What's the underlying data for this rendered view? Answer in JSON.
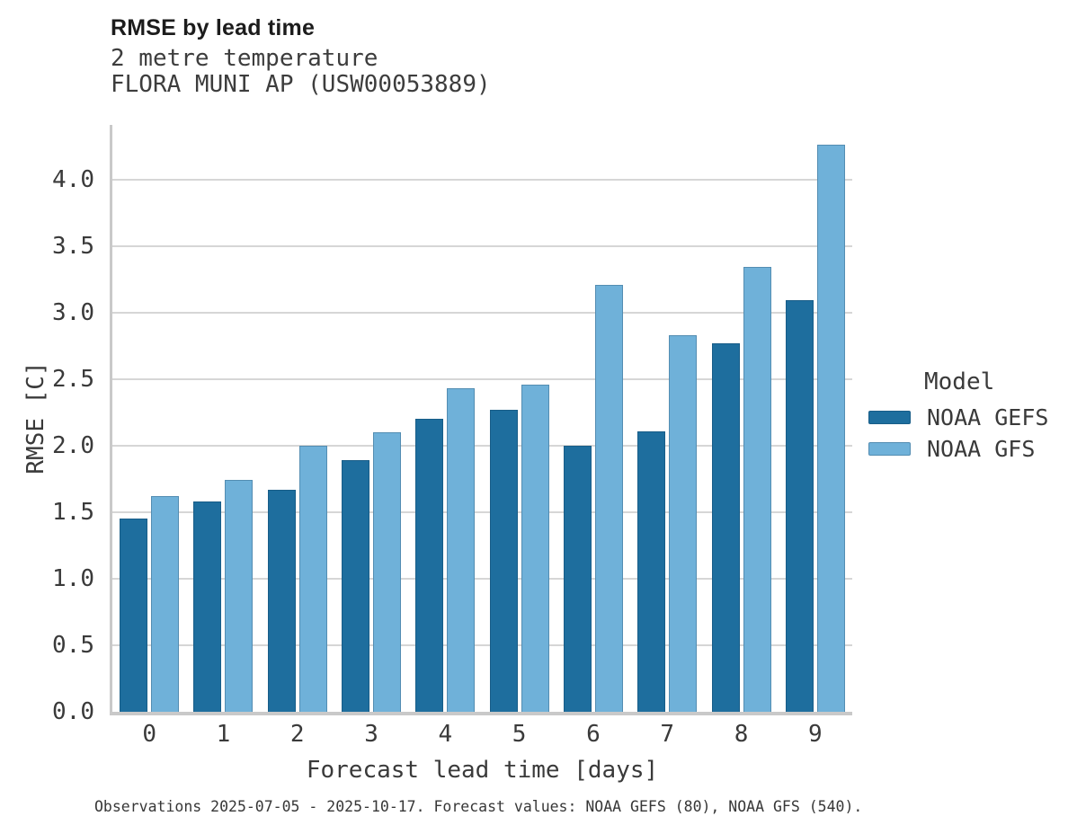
{
  "chart_data": {
    "type": "bar",
    "title": "RMSE by lead time",
    "subtitle_lines": [
      "2 metre temperature",
      "FLORA MUNI AP (USW00053889)"
    ],
    "xlabel": "Forecast lead time [days]",
    "ylabel": "RMSE [C]",
    "categories": [
      "0",
      "1",
      "2",
      "3",
      "4",
      "5",
      "6",
      "7",
      "8",
      "9"
    ],
    "series": [
      {
        "name": "NOAA GEFS",
        "color": "#1e6e9e",
        "values": [
          1.45,
          1.58,
          1.67,
          1.89,
          2.2,
          2.27,
          2.0,
          2.11,
          2.77,
          3.09
        ]
      },
      {
        "name": "NOAA GFS",
        "color": "#6fb1d9",
        "values": [
          1.62,
          1.74,
          2.0,
          2.1,
          2.43,
          2.46,
          3.21,
          2.83,
          3.34,
          4.26
        ]
      }
    ],
    "ylim": [
      0,
      4.41
    ],
    "yticks": [
      0.0,
      0.5,
      1.0,
      1.5,
      2.0,
      2.5,
      3.0,
      3.5,
      4.0
    ],
    "grid": true,
    "legend": {
      "title": "Model",
      "position": "right"
    }
  },
  "footer": {
    "note": "Observations 2025-07-05 - 2025-10-17. Forecast values: NOAA GEFS (80), NOAA GFS (540)."
  },
  "colors": {
    "background": "#ffffff",
    "grid": "#d6d6d6",
    "spine": "#c9c9c9",
    "title_text": "#1c1c1c",
    "subtitle_text": "#3d3d3d",
    "tick_text": "#3a3a3a",
    "footer_text": "#373737"
  }
}
